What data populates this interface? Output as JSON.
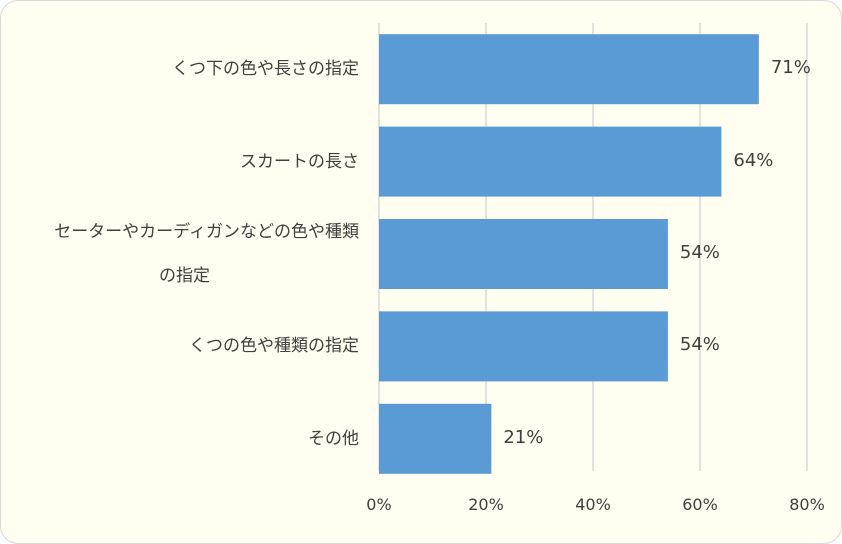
{
  "chart_data": {
    "type": "bar",
    "orientation": "horizontal",
    "categories": [
      [
        "くつ下の色や長さの指定"
      ],
      [
        "スカートの長さ"
      ],
      [
        "セーターやカーディガンなどの色や種類",
        "の指定"
      ],
      [
        "くつの色や種類の指定"
      ],
      [
        "その他"
      ]
    ],
    "values": [
      71,
      64,
      54,
      54,
      21
    ],
    "value_labels": [
      "71%",
      "64%",
      "54%",
      "54%",
      "21%"
    ],
    "xlim": [
      0,
      80
    ],
    "ticks": [
      0,
      20,
      40,
      60,
      80
    ],
    "tick_labels": [
      "0%",
      "20%",
      "40%",
      "60%",
      "80%"
    ],
    "grid": true,
    "colors": {
      "bar": "#5b9bd5",
      "grid": "#d9d9d9",
      "background": "#fffef0"
    }
  }
}
